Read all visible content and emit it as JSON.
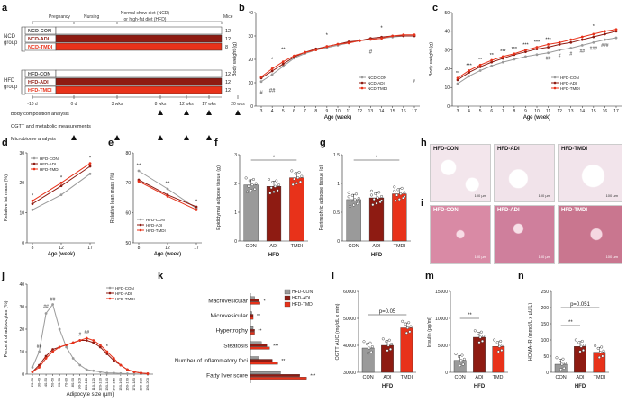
{
  "panels": [
    "a",
    "b",
    "c",
    "d",
    "e",
    "f",
    "g",
    "h",
    "i",
    "j",
    "k",
    "l",
    "m",
    "n"
  ],
  "panel_a": {
    "header_top": "Normal chow diet (NCD)",
    "header_bottom": "or high-fat diet (HFD)",
    "phase_labels": [
      "Pregnancy",
      "Nursing"
    ],
    "mice_header": "Mice",
    "ncd_group_label": [
      "NCD",
      "group"
    ],
    "hfd_group_label": [
      "HFD",
      "group"
    ],
    "rows": [
      {
        "name": "NCD-CON",
        "n": "12",
        "color": "#ffffff"
      },
      {
        "name": "NCD-ADI",
        "n": "12",
        "color": "#8e1b12"
      },
      {
        "name": "NCD-TMDI",
        "n": "8",
        "color": "#e8321a"
      },
      {
        "name": "HFD-CON",
        "n": "12",
        "color": "#ffffff"
      },
      {
        "name": "HFD-ADI",
        "n": "12",
        "color": "#8e1b12"
      },
      {
        "name": "HFD-TMDI",
        "n": "12",
        "color": "#e8321a"
      }
    ],
    "timeline": [
      "-10 d",
      "0 d",
      "3 wks",
      "8 wks",
      "12 wks",
      "17 wks",
      "20 wks"
    ],
    "measurements": [
      {
        "name": "Body composition analysis",
        "marks": [
          "8 wks",
          "12 wks",
          "17 wks",
          "20 wks"
        ]
      },
      {
        "name": "OGTT and metabolic measurements",
        "marks": []
      },
      {
        "name": "Microbiome analysis",
        "marks": [
          "0 d",
          "3 wks",
          "8 wks",
          "12 wks",
          "17 wks"
        ]
      }
    ]
  },
  "chart_data": [
    {
      "panel": "b",
      "type": "line",
      "ylabel": "Body weight (g)",
      "xlabel": "Age (week)",
      "x": [
        3,
        4,
        5,
        6,
        7,
        8,
        9,
        10,
        11,
        12,
        13,
        14,
        15,
        16,
        17
      ],
      "ylim": [
        0,
        40
      ],
      "yticks": [
        0,
        10,
        20,
        30,
        40
      ],
      "series": [
        {
          "name": "NCD-CON",
          "color": "#9a9a9a",
          "values": [
            10.5,
            13.5,
            17,
            20.5,
            22.5,
            24,
            25,
            26,
            27,
            28,
            28.5,
            29,
            29.5,
            30,
            30
          ]
        },
        {
          "name": "NCD-ADI",
          "color": "#8e1b12",
          "values": [
            12,
            15,
            18,
            21,
            23,
            24.5,
            25.5,
            26.5,
            27.5,
            28,
            29,
            29.5,
            30,
            30,
            30
          ]
        },
        {
          "name": "NCD-TMDI",
          "color": "#e8321a",
          "values": [
            12.5,
            16,
            19,
            21.5,
            23,
            24,
            25.5,
            26.5,
            27,
            28,
            28.5,
            29,
            30,
            30.5,
            30.5
          ]
        }
      ],
      "annotations": [
        "*",
        "#",
        "**",
        "##",
        "*",
        "*",
        "#",
        "#"
      ]
    },
    {
      "panel": "c",
      "type": "line",
      "ylabel": "Body weight (g)",
      "xlabel": "Age (week)",
      "x": [
        3,
        4,
        5,
        6,
        7,
        8,
        9,
        10,
        11,
        12,
        13,
        14,
        15,
        16,
        17
      ],
      "ylim": [
        0,
        50
      ],
      "yticks": [
        0,
        10,
        20,
        30,
        40,
        50
      ],
      "series": [
        {
          "name": "HFD-CON",
          "color": "#9a9a9a",
          "values": [
            12,
            16,
            19,
            21.5,
            23.5,
            25,
            26.5,
            27.5,
            28.5,
            30,
            31,
            32.5,
            34,
            35.5,
            36.5
          ]
        },
        {
          "name": "HFD-ADI",
          "color": "#8e1b12",
          "values": [
            14,
            18,
            21,
            23.5,
            25.5,
            27.5,
            29,
            30.5,
            31.5,
            33,
            34,
            35.5,
            37,
            38.5,
            40
          ]
        },
        {
          "name": "HFD-TMDI",
          "color": "#e8321a",
          "values": [
            15,
            19,
            22,
            24.5,
            26.5,
            28,
            30,
            31.5,
            33,
            34,
            35.5,
            37,
            38.5,
            40,
            41
          ]
        }
      ],
      "annotations": [
        "**",
        "***",
        "**",
        "**",
        "***",
        "***",
        "***",
        "***",
        "***",
        "*",
        "##",
        "#",
        "#",
        "##",
        "###",
        "###"
      ]
    },
    {
      "panel": "d",
      "type": "line",
      "ylabel": "Relative fat mass (%)",
      "xlabel": "Age (week)",
      "categories": [
        "8",
        "12",
        "17"
      ],
      "ylim": [
        0,
        30
      ],
      "yticks": [
        0,
        10,
        20,
        30
      ],
      "series": [
        {
          "name": "HFD-CON",
          "color": "#9a9a9a",
          "values": [
            11,
            16,
            23
          ]
        },
        {
          "name": "HFD-ADI",
          "color": "#8e1b12",
          "values": [
            13,
            19,
            25.5
          ]
        },
        {
          "name": "HFD-TMDI",
          "color": "#e8321a",
          "values": [
            14,
            20,
            26.5
          ]
        }
      ]
    },
    {
      "panel": "e",
      "type": "line",
      "ylabel": "Relative lean mass (%)",
      "xlabel": "Age (week)",
      "categories": [
        "8",
        "12",
        "17"
      ],
      "ylim": [
        50,
        80
      ],
      "yticks": [
        50,
        60,
        70,
        80
      ],
      "series": [
        {
          "name": "HFD-CON",
          "color": "#9a9a9a",
          "values": [
            74,
            68,
            61.5
          ]
        },
        {
          "name": "HFD-ADI",
          "color": "#8e1b12",
          "values": [
            71,
            66,
            62
          ]
        },
        {
          "name": "HFD-TMDI",
          "color": "#e8321a",
          "values": [
            70.5,
            65.5,
            61
          ]
        }
      ]
    },
    {
      "panel": "f",
      "type": "bar",
      "ylabel": "Epididymal adipose tissue (g)",
      "xlabel": "HFD",
      "categories": [
        "CON",
        "ADI",
        "TMDI"
      ],
      "values": [
        1.95,
        1.9,
        2.2
      ],
      "ylim": [
        0,
        3
      ],
      "yticks": [
        0,
        1,
        2,
        3
      ],
      "colors": [
        "#9a9a9a",
        "#8e1b12",
        "#e8321a"
      ],
      "annotations": [
        "*"
      ]
    },
    {
      "panel": "g",
      "type": "bar",
      "ylabel": "Perinephric adipose tissue (g)",
      "xlabel": "HFD",
      "categories": [
        "CON",
        "ADI",
        "TMDI"
      ],
      "values": [
        0.72,
        0.75,
        0.82
      ],
      "ylim": [
        0,
        1.5
      ],
      "yticks": [
        0,
        0.5,
        1.0,
        1.5
      ],
      "colors": [
        "#9a9a9a",
        "#8e1b12",
        "#e8321a"
      ],
      "annotations": [
        "*"
      ]
    },
    {
      "panel": "j",
      "type": "line",
      "ylabel": "Percent of adipocytes (%)",
      "xlabel": "Adipocyte size (µm)",
      "categories": [
        "20-30",
        "30-40",
        "40-50",
        "50-60",
        "60-70",
        "70-80",
        "80-90",
        "90-100",
        "100-110",
        "110-120",
        "120-130",
        "130-140",
        "140-150",
        "150-160",
        "160-170",
        "170-180",
        "180-190",
        "190-200"
      ],
      "ylim": [
        0,
        40
      ],
      "yticks": [
        0,
        10,
        20,
        30,
        40
      ],
      "series": [
        {
          "name": "HFD-CON",
          "color": "#9a9a9a",
          "values": [
            3,
            10,
            27,
            31,
            20,
            12,
            7,
            4,
            2,
            1.5,
            1,
            0.5,
            0.5,
            0.3,
            0.2,
            0.1,
            0.1,
            0.1
          ]
        },
        {
          "name": "HFD-ADI",
          "color": "#8e1b12",
          "values": [
            1,
            4,
            8,
            11,
            12,
            13,
            14,
            15,
            15,
            14,
            12,
            9,
            6,
            4,
            2,
            1,
            0.5,
            0.2
          ]
        },
        {
          "name": "HFD-TMDI",
          "color": "#e8321a",
          "values": [
            1,
            3,
            7,
            10,
            12,
            13,
            14,
            15,
            16,
            15,
            13,
            10,
            7,
            4,
            2,
            1,
            0.5,
            0.2
          ]
        }
      ]
    },
    {
      "panel": "k",
      "type": "bar",
      "orientation": "horizontal",
      "categories": [
        "Macrovesicular",
        "Microvesicular",
        "Hypertrophy",
        "Steatosis",
        "Number of inflammatory foci",
        "Fatty liver score"
      ],
      "series": [
        {
          "name": "HFD-CON",
          "color": "#9a9a9a",
          "values": [
            0.3,
            0.1,
            0.2,
            0.8,
            0.6,
            2.2
          ]
        },
        {
          "name": "HFD-ADI",
          "color": "#8e1b12",
          "values": [
            0.6,
            0.2,
            0.3,
            1.2,
            1.6,
            3.6
          ]
        },
        {
          "name": "HFD-TMDI",
          "color": "#e8321a",
          "values": [
            0.7,
            0.2,
            0.3,
            1.4,
            2.0,
            4.1
          ]
        }
      ],
      "annotations": [
        "*",
        "**",
        "**",
        "***",
        "**",
        "***"
      ]
    },
    {
      "panel": "l",
      "type": "bar",
      "ylabel": "OGTT AUC (mg/dL x min)",
      "xlabel": "HFD",
      "categories": [
        "CON",
        "ADI",
        "TMDI"
      ],
      "values": [
        39000,
        40000,
        46500
      ],
      "ylim": [
        30000,
        60000
      ],
      "yticks": [
        30000,
        40000,
        50000,
        60000
      ],
      "colors": [
        "#9a9a9a",
        "#8e1b12",
        "#e8321a"
      ],
      "annotations": [
        "p=0.05"
      ]
    },
    {
      "panel": "m",
      "type": "bar",
      "ylabel": "Insulin (pg/ml)",
      "xlabel": "HFD",
      "categories": [
        "CON",
        "ADI",
        "TMDI"
      ],
      "values": [
        2200,
        6500,
        4800
      ],
      "ylim": [
        0,
        15000
      ],
      "yticks": [
        0,
        5000,
        10000,
        15000
      ],
      "colors": [
        "#9a9a9a",
        "#8e1b12",
        "#e8321a"
      ],
      "annotations": [
        "**"
      ]
    },
    {
      "panel": "n",
      "type": "bar",
      "ylabel": "HOMA-IR (mmol/L x µU/L)",
      "xlabel": "HFD",
      "categories": [
        "CON",
        "ADI",
        "TMDI"
      ],
      "values": [
        25,
        80,
        62
      ],
      "ylim": [
        0,
        250
      ],
      "yticks": [
        0,
        50,
        100,
        150,
        200,
        250
      ],
      "colors": [
        "#9a9a9a",
        "#8e1b12",
        "#e8321a"
      ],
      "annotations": [
        "p=0.051",
        "**"
      ]
    }
  ],
  "histology": {
    "row_h": {
      "labels": [
        "HFD-CON",
        "HFD-ADI",
        "HFD-TMDI"
      ],
      "scale": [
        "100 µm",
        "100 µm",
        "100 µm"
      ]
    },
    "row_i": {
      "labels": [
        "HFD-CON",
        "HFD-ADI",
        "HFD-TMDI"
      ],
      "scale": [
        "100 µm",
        "100 µm",
        "100 µm"
      ]
    }
  }
}
